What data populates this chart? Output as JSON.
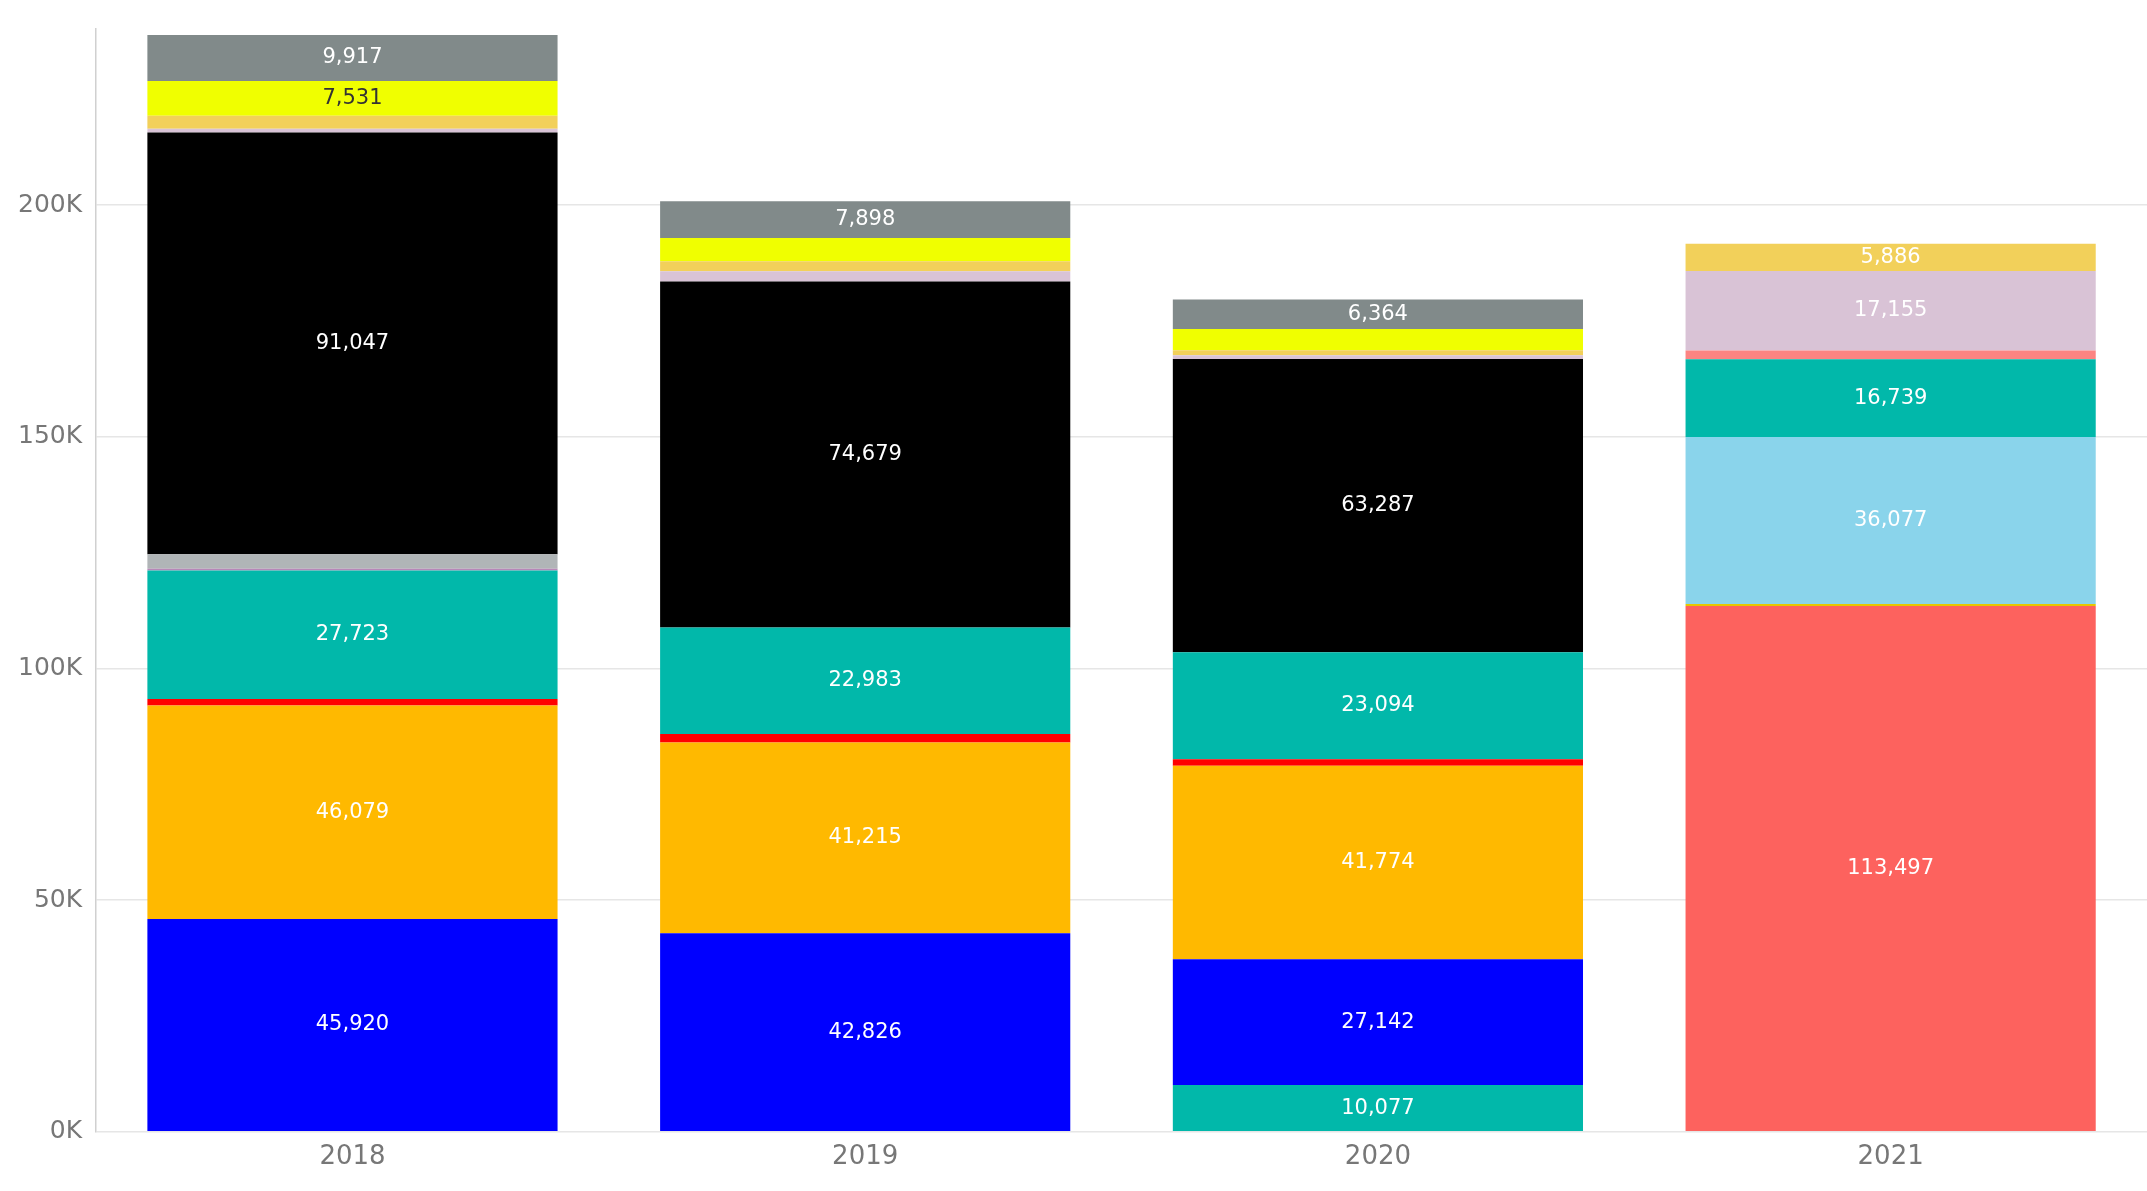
{
  "chart_data": {
    "type": "bar",
    "stacked": true,
    "categories": [
      "2018",
      "2019",
      "2020",
      "2021"
    ],
    "yticks": [
      {
        "value": 0,
        "label": "0K"
      },
      {
        "value": 50000,
        "label": "50K"
      },
      {
        "value": 100000,
        "label": "100K"
      },
      {
        "value": 150000,
        "label": "150K"
      },
      {
        "value": 200000,
        "label": "200K"
      }
    ],
    "ylim": [
      0,
      238000
    ],
    "grid": "y",
    "legend": false,
    "series": [
      {
        "color": "#fd625e",
        "values": [
          null,
          null,
          null,
          113497
        ],
        "value_labels": [
          null,
          null,
          null,
          "113,497"
        ]
      },
      {
        "color": "#01b8aa",
        "values": [
          null,
          null,
          10077,
          null
        ],
        "value_labels": [
          null,
          null,
          "10,077",
          null
        ]
      },
      {
        "color": "#0000ff",
        "values": [
          45920,
          42826,
          27142,
          null
        ],
        "value_labels": [
          "45,920",
          "42,826",
          "27,142",
          null
        ]
      },
      {
        "color": "#ffb900",
        "values": [
          46079,
          41215,
          41774,
          null
        ],
        "value_labels": [
          "46,079",
          "41,215",
          "41,774",
          null
        ]
      },
      {
        "color": "#ff0000",
        "values": [
          1400,
          1800,
          1400,
          null
        ],
        "value_labels": [
          null,
          null,
          null,
          null
        ]
      },
      {
        "color": "#e6c700",
        "values": [
          null,
          null,
          null,
          400
        ],
        "value_labels": [
          null,
          null,
          null,
          null
        ]
      },
      {
        "color": "#8ad4eb",
        "values": [
          null,
          null,
          null,
          36077
        ],
        "value_labels": [
          null,
          null,
          null,
          "36,077"
        ]
      },
      {
        "color": "#01b8aa",
        "values": [
          27723,
          22983,
          23094,
          16739
        ],
        "value_labels": [
          "27,723",
          "22,983",
          "23,094",
          "16,739"
        ]
      },
      {
        "color": "#b787b8",
        "values": [
          400,
          null,
          null,
          null
        ],
        "value_labels": [
          null,
          null,
          null,
          null
        ]
      },
      {
        "color": "#b0b5b7",
        "values": [
          3100,
          null,
          null,
          null
        ],
        "value_labels": [
          null,
          null,
          null,
          null
        ]
      },
      {
        "color": "#000000",
        "values": [
          91047,
          74679,
          63287,
          null
        ],
        "value_labels": [
          "91,047",
          "74,679",
          "63,287",
          null
        ]
      },
      {
        "color": "#fc8482",
        "values": [
          null,
          null,
          null,
          1900
        ],
        "value_labels": [
          null,
          null,
          null,
          null
        ]
      },
      {
        "color": "#d9c3d6",
        "values": [
          800,
          2200,
          800,
          17155
        ],
        "value_labels": [
          null,
          null,
          null,
          "17,155"
        ]
      },
      {
        "color": "#f2d05a",
        "values": [
          2800,
          2200,
          1100,
          5886
        ],
        "value_labels": [
          null,
          null,
          null,
          "5,886"
        ]
      },
      {
        "color": "#f0ff00",
        "values": [
          7531,
          5000,
          4600,
          null
        ],
        "value_labels": [
          "7,531",
          null,
          null,
          null
        ]
      },
      {
        "color": "#818a8a",
        "values": [
          9917,
          7898,
          6364,
          null
        ],
        "value_labels": [
          "9,917",
          "7,898",
          "6,364",
          null
        ]
      }
    ]
  }
}
